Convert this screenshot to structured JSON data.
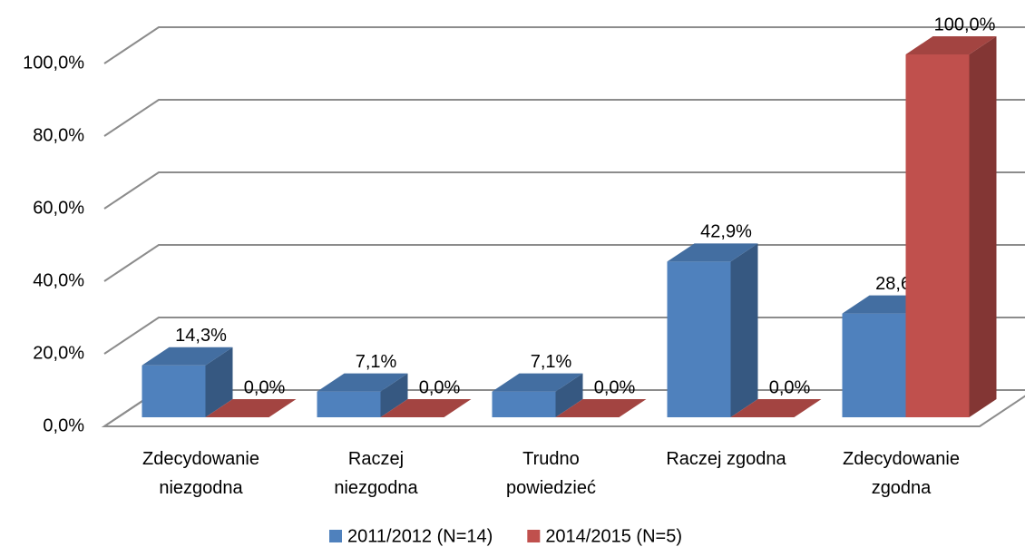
{
  "chart_data": {
    "type": "bar3d",
    "categories": [
      "Zdecydowanie\nniezgodna",
      "Raczej\nniezgodna",
      "Trudno\npowiedzieć",
      "Raczej zgodna",
      "Zdecydowanie\nzgodna"
    ],
    "series": [
      {
        "name": "2011/2012 (N=14)",
        "color": "#4f81bd",
        "values": [
          14.3,
          7.1,
          7.1,
          42.9,
          28.6
        ],
        "value_labels": [
          "14,3%",
          "7,1%",
          "7,1%",
          "42,9%",
          "28,6%"
        ]
      },
      {
        "name": "2014/2015 (N=5)",
        "color": "#c0504d",
        "values": [
          0,
          0,
          0,
          0,
          100
        ],
        "value_labels": [
          "0,0%",
          "0,0%",
          "0,0%",
          "0,0%",
          "100,0%"
        ]
      }
    ],
    "ylim": [
      0,
      100
    ],
    "yticks": [
      {
        "value": 0,
        "label": "0,0%"
      },
      {
        "value": 20,
        "label": "20,0%"
      },
      {
        "value": 40,
        "label": "40,0%"
      },
      {
        "value": 60,
        "label": "60,0%"
      },
      {
        "value": 80,
        "label": "80,0%"
      },
      {
        "value": 100,
        "label": "100,0%"
      }
    ],
    "grid": true,
    "legend": "bottom"
  }
}
